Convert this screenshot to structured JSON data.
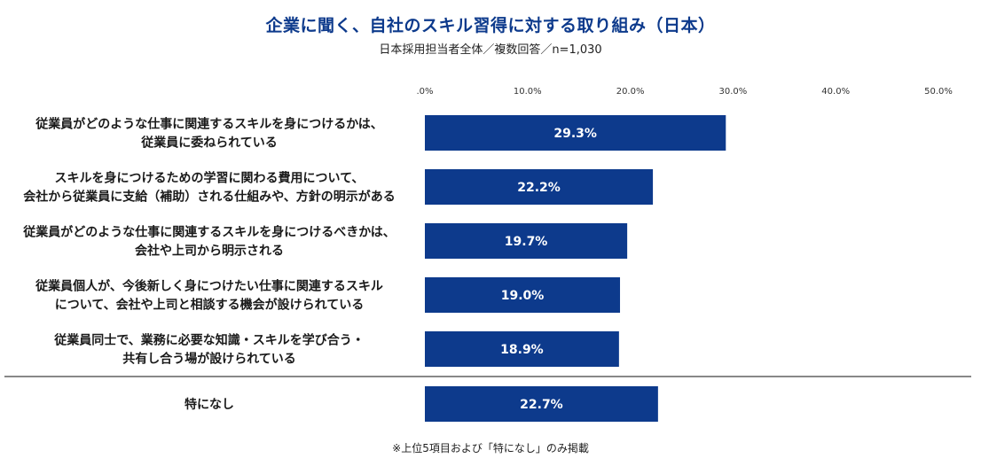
{
  "header": {
    "title": "企業に聞く、自社のスキル習得に対する取り組み（日本）",
    "subtitle": "日本採用担当者全体／複数回答／n=1,030"
  },
  "footnote": "※上位5項目および「特になし」のみ掲載",
  "chart_data": {
    "type": "bar",
    "orientation": "horizontal",
    "title": "企業に聞く、自社のスキル習得に対する取り組み（日本）",
    "subtitle": "日本採用担当者全体／複数回答／n=1,030",
    "xlim": [
      0,
      50
    ],
    "ticks": [
      0,
      10,
      20,
      30,
      40,
      50
    ],
    "tick_labels": [
      ".0%",
      "10.0%",
      "20.0%",
      "30.0%",
      "40.0%",
      "50.0%"
    ],
    "bar_color": "#0d3a8c",
    "separator_color": "#888888",
    "categories": [
      [
        "従業員がどのような仕事に関連するスキルを身につけるかは、",
        "従業員に委ねられている"
      ],
      [
        "スキルを身につけるための学習に関わる費用について、",
        "会社から従業員に支給（補助）される仕組みや、方針の明示がある"
      ],
      [
        "従業員がどのような仕事に関連するスキルを身につけるべきかは、",
        "会社や上司から明示される"
      ],
      [
        "従業員個人が、今後新しく身につけたい仕事に関連するスキル",
        "について、会社や上司と相談する機会が設けられている"
      ],
      [
        "従業員同士で、業務に必要な知識・スキルを学び合う・",
        "共有し合う場が設けられている"
      ],
      [
        "特になし"
      ]
    ],
    "values": [
      29.3,
      22.2,
      19.7,
      19.0,
      18.9,
      22.7
    ],
    "value_labels": [
      "29.3%",
      "22.2%",
      "19.7%",
      "19.0%",
      "18.9%",
      "22.7%"
    ]
  }
}
